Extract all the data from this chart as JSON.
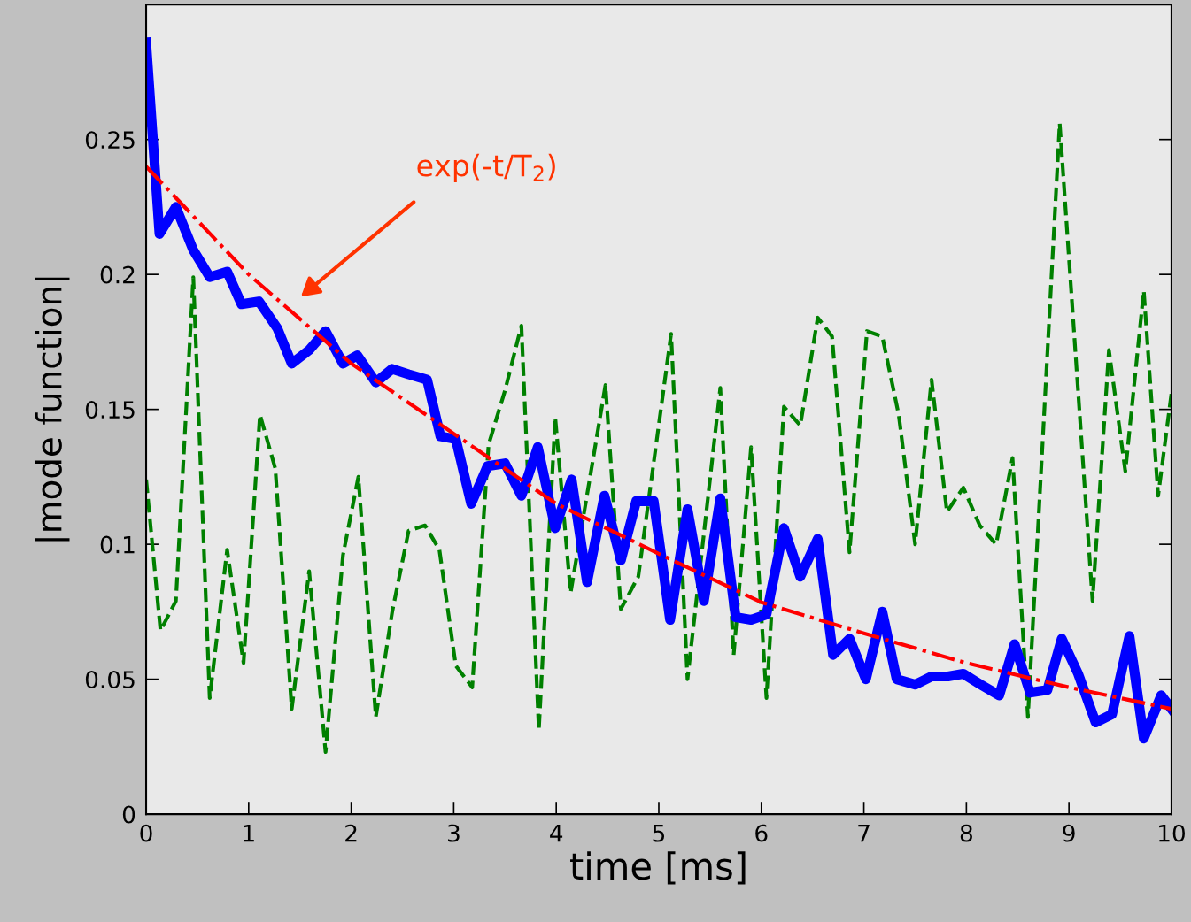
{
  "chart_data": {
    "type": "line",
    "xlabel": "time [ms]",
    "ylabel": "|mode function|",
    "xlim": [
      0,
      10
    ],
    "xticks": [
      0,
      1,
      2,
      3,
      4,
      5,
      6,
      7,
      8,
      9,
      10
    ],
    "ylim": [
      0,
      0.3
    ],
    "yticks": [
      0,
      0.05,
      0.1,
      0.15,
      0.2,
      0.25
    ],
    "grid": false,
    "legend": false,
    "marker": "none",
    "annotations": [
      "exp(-t/T$_{2}$)"
    ],
    "series": [
      {
        "color": "#008000",
        "line_style": "dashed",
        "x": [
          0,
          0.14,
          0.29,
          0.46,
          0.62,
          0.79,
          0.95,
          1.11,
          1.26,
          1.42,
          1.59,
          1.75,
          1.92,
          2.07,
          2.24,
          2.4,
          2.56,
          2.72,
          2.86,
          3.02,
          3.18,
          3.34,
          3.5,
          3.66,
          3.83,
          3.99,
          4.14,
          4.48,
          4.63,
          4.8,
          5.12,
          5.28,
          5.6,
          5.73,
          5.9,
          6.05,
          6.22,
          6.38,
          6.55,
          6.69,
          6.86,
          7.03,
          7.18,
          7.34,
          7.5,
          7.66,
          7.81,
          7.97,
          8.13,
          8.29,
          8.45,
          8.6,
          8.91,
          9.23,
          9.39,
          9.55,
          9.73,
          9.87,
          10
        ],
        "values": [
          0.124,
          0.068,
          0.079,
          0.199,
          0.043,
          0.098,
          0.056,
          0.148,
          0.128,
          0.039,
          0.09,
          0.023,
          0.096,
          0.125,
          0.036,
          0.075,
          0.105,
          0.107,
          0.098,
          0.055,
          0.047,
          0.137,
          0.157,
          0.181,
          0.031,
          0.147,
          0.082,
          0.159,
          0.076,
          0.088,
          0.178,
          0.05,
          0.158,
          0.059,
          0.136,
          0.043,
          0.151,
          0.144,
          0.184,
          0.177,
          0.097,
          0.179,
          0.177,
          0.148,
          0.1,
          0.161,
          0.112,
          0.121,
          0.107,
          0.1,
          0.132,
          0.036,
          0.256,
          0.079,
          0.172,
          0.127,
          0.194,
          0.118,
          0.156
        ]
      },
      {
        "color": "#0000ff",
        "line_style": "solid",
        "x": [
          0,
          0.13,
          0.29,
          0.46,
          0.62,
          0.79,
          0.93,
          1.1,
          1.28,
          1.42,
          1.59,
          1.75,
          1.92,
          2.06,
          2.24,
          2.4,
          2.56,
          2.74,
          2.87,
          3.02,
          3.17,
          3.33,
          3.5,
          3.66,
          3.82,
          3.99,
          4.15,
          4.3,
          4.47,
          4.63,
          4.78,
          4.95,
          5.11,
          5.28,
          5.44,
          5.6,
          5.75,
          5.9,
          6.05,
          6.22,
          6.38,
          6.55,
          6.7,
          6.86,
          7.02,
          7.18,
          7.32,
          7.5,
          7.66,
          7.82,
          7.97,
          8.14,
          8.32,
          8.47,
          8.62,
          8.79,
          8.93,
          9.09,
          9.26,
          9.42,
          9.59,
          9.73,
          9.9,
          10
        ],
        "values": [
          0.286,
          0.215,
          0.225,
          0.209,
          0.199,
          0.201,
          0.189,
          0.19,
          0.18,
          0.167,
          0.172,
          0.179,
          0.167,
          0.17,
          0.16,
          0.165,
          0.163,
          0.161,
          0.14,
          0.139,
          0.115,
          0.129,
          0.13,
          0.118,
          0.136,
          0.106,
          0.124,
          0.086,
          0.118,
          0.094,
          0.116,
          0.116,
          0.072,
          0.113,
          0.079,
          0.117,
          0.073,
          0.072,
          0.074,
          0.106,
          0.088,
          0.102,
          0.059,
          0.065,
          0.05,
          0.075,
          0.05,
          0.048,
          0.051,
          0.051,
          0.052,
          0.048,
          0.044,
          0.063,
          0.045,
          0.046,
          0.065,
          0.052,
          0.034,
          0.037,
          0.066,
          0.028,
          0.044,
          0.039
        ]
      },
      {
        "color": "#ff0000",
        "line_style": "dashdot",
        "x": [
          0,
          1,
          2,
          3,
          4,
          5,
          6,
          7,
          8,
          9,
          10
        ],
        "values": [
          0.24,
          0.2,
          0.167,
          0.141,
          0.115,
          0.0965,
          0.0785,
          0.067,
          0.056,
          0.047,
          0.039
        ]
      }
    ]
  }
}
